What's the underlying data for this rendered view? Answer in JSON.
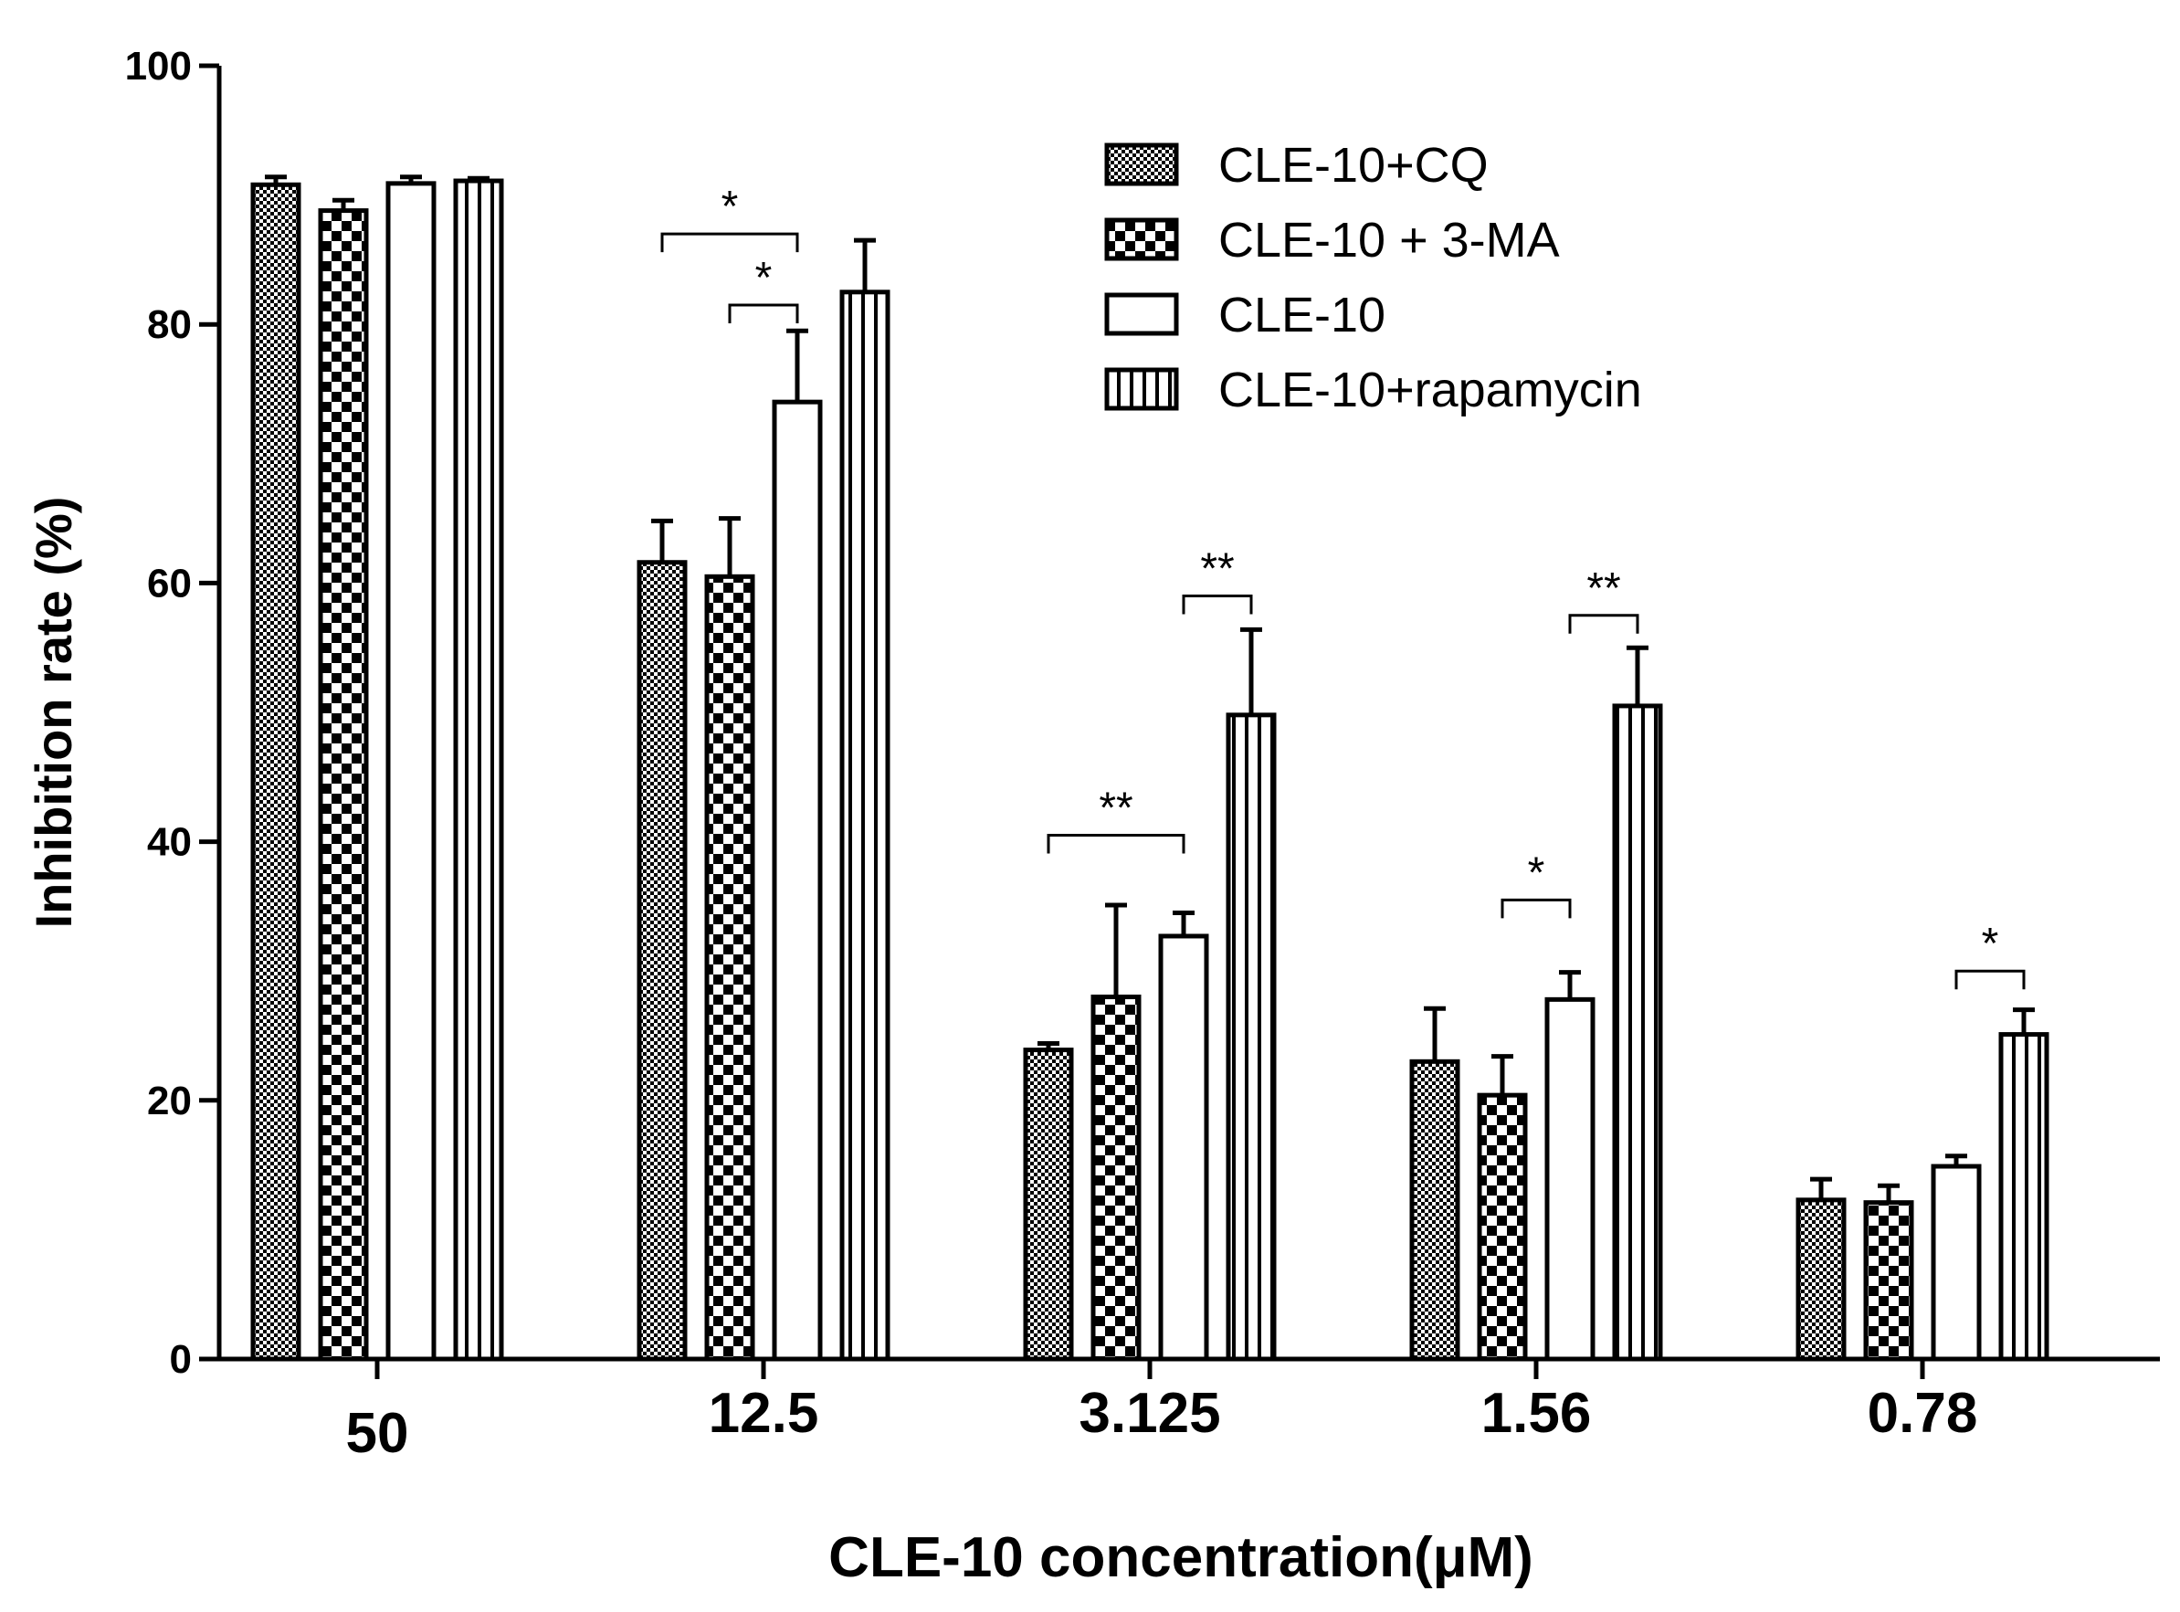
{
  "chart_data": {
    "type": "bar",
    "title": "",
    "xlabel": "CLE-10 concentration(μM)",
    "ylabel": "Inhibition rate (%)",
    "ylim": [
      0,
      100
    ],
    "yticks": [
      0,
      20,
      40,
      60,
      80,
      100
    ],
    "categories": [
      "50",
      "12.5",
      "3.125",
      "1.56",
      "0.78"
    ],
    "legend_position": "top-right",
    "series": [
      {
        "name": "CLE-10+CQ",
        "pattern": "fine-dots",
        "values": [
          90.8,
          61.6,
          23.9,
          23.0,
          12.3
        ],
        "errors": [
          0.6,
          3.2,
          0.5,
          4.1,
          1.6
        ]
      },
      {
        "name": "CLE-10 + 3-MA",
        "pattern": "checker",
        "values": [
          88.8,
          60.5,
          28.0,
          20.4,
          12.1
        ],
        "errors": [
          0.8,
          4.5,
          7.1,
          3.0,
          1.3
        ]
      },
      {
        "name": "CLE-10",
        "pattern": "open",
        "values": [
          90.9,
          74.0,
          32.7,
          27.8,
          14.9
        ],
        "errors": [
          0.5,
          5.5,
          1.8,
          2.1,
          0.8
        ]
      },
      {
        "name": "CLE-10+rapamycin",
        "pattern": "vertical-lines",
        "values": [
          91.1,
          82.5,
          49.8,
          50.5,
          25.1
        ],
        "errors": [
          0.2,
          4.0,
          6.6,
          4.5,
          1.9
        ]
      }
    ],
    "significance": [
      {
        "category": 1,
        "from_series": 0,
        "to_series": 2,
        "level": 87,
        "label": "*"
      },
      {
        "category": 1,
        "from_series": 1,
        "to_series": 2,
        "level": 81.5,
        "label": "*"
      },
      {
        "category": 2,
        "from_series": 2,
        "to_series": 3,
        "level": 59,
        "label": "**"
      },
      {
        "category": 2,
        "from_series": 0,
        "to_series": 2,
        "level": 40.5,
        "label": "**"
      },
      {
        "category": 3,
        "from_series": 2,
        "to_series": 3,
        "level": 57.5,
        "label": "**"
      },
      {
        "category": 3,
        "from_series": 1,
        "to_series": 2,
        "level": 35.5,
        "label": "*"
      },
      {
        "category": 4,
        "from_series": 2,
        "to_series": 3,
        "level": 30,
        "label": "*"
      }
    ]
  }
}
